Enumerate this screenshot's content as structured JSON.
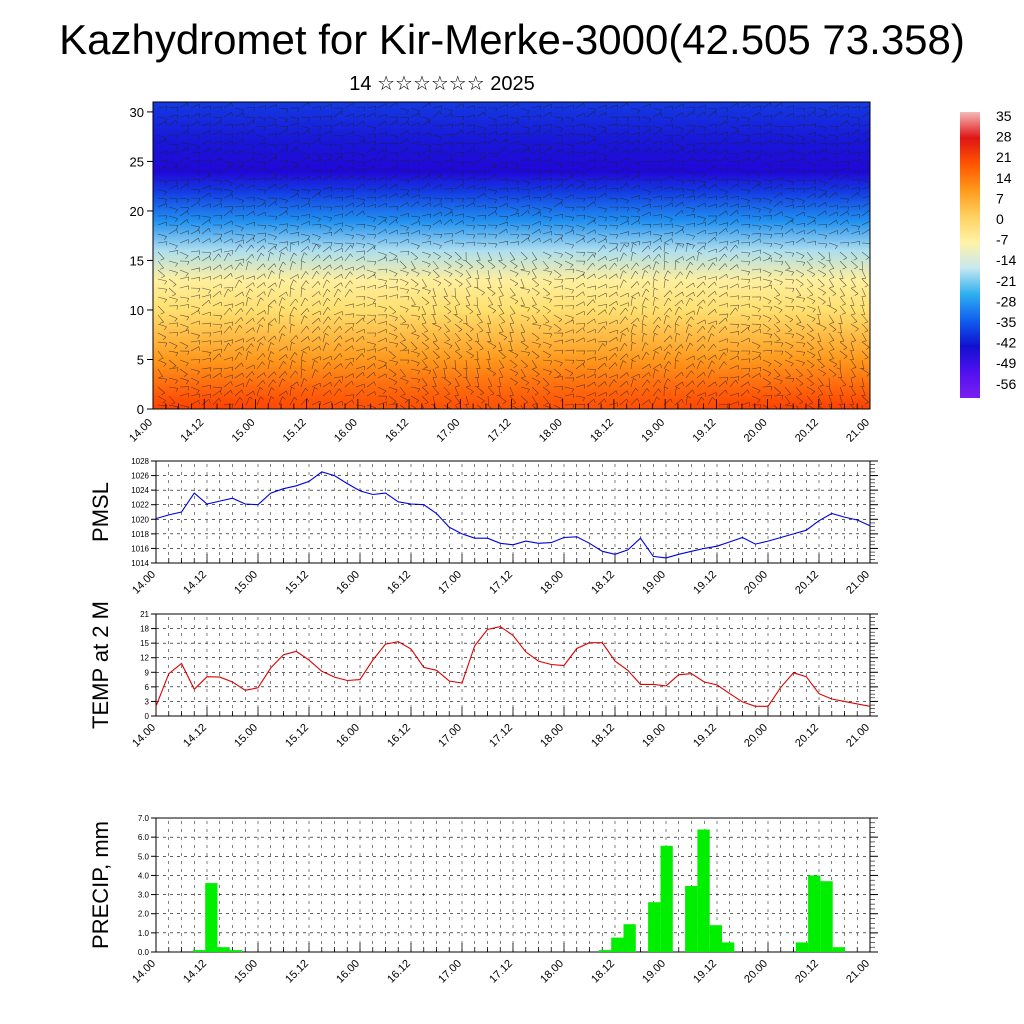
{
  "title": "Kazhydromet for Kir-Merke-3000(42.505 73.358)",
  "subtitle": "14 ☆☆☆☆☆☆ 2025",
  "time_labels": [
    "14.00",
    "14.12",
    "15.00",
    "15.12",
    "16.00",
    "16.12",
    "17.00",
    "17.12",
    "18.00",
    "18.12",
    "19.00",
    "19.12",
    "20.00",
    "20.12",
    "21.00"
  ],
  "chart_data": [
    {
      "type": "heatmap",
      "description_id": "cross-section",
      "y_ticks": [
        0,
        5,
        10,
        15,
        20,
        25,
        30
      ],
      "ylim": [
        0,
        31
      ],
      "colorbar": {
        "labels": [
          "35",
          "28",
          "21",
          "14",
          "7",
          "0",
          "-7",
          "-14",
          "-21",
          "-28",
          "-35",
          "-42",
          "-49",
          "-56"
        ],
        "colors": [
          "#f5b8b8",
          "#e01515",
          "#ff5500",
          "#ff9a1a",
          "#ffd060",
          "#fff3a8",
          "#c8e8f0",
          "#30b0f0",
          "#1060f0",
          "#1010d0",
          "#5010f0",
          "#7a20f0"
        ]
      },
      "temperature_profile_by_height": [
        [
          0,
          17
        ],
        [
          5,
          8
        ],
        [
          10,
          0
        ],
        [
          13,
          -5
        ],
        [
          16,
          -14
        ],
        [
          19,
          -28
        ],
        [
          22,
          -42
        ],
        [
          24,
          -56
        ],
        [
          27,
          -49
        ],
        [
          31,
          -42
        ]
      ]
    },
    {
      "type": "line",
      "ylabel": "PMSL",
      "color": "#0000dd",
      "ylim": [
        1014,
        1028
      ],
      "y_ticks": [
        1014,
        1016,
        1018,
        1020,
        1022,
        1024,
        1026,
        1028
      ],
      "values": [
        1020.1,
        1020.6,
        1021.0,
        1023.6,
        1022.1,
        1022.5,
        1022.9,
        1022.1,
        1022.0,
        1023.6,
        1024.2,
        1024.6,
        1025.2,
        1026.5,
        1026.0,
        1024.9,
        1023.9,
        1023.4,
        1023.6,
        1022.4,
        1022.1,
        1022.0,
        1020.8,
        1018.9,
        1018.0,
        1017.4,
        1017.4,
        1016.7,
        1016.5,
        1017.0,
        1016.7,
        1016.8,
        1017.5,
        1017.6,
        1016.7,
        1015.6,
        1015.2,
        1015.8,
        1017.4,
        1014.9,
        1014.7,
        1015.2,
        1015.6,
        1016.0,
        1016.3,
        1016.9,
        1017.5,
        1016.6,
        1017.0,
        1017.5,
        1018.0,
        1018.5,
        1019.8,
        1020.8,
        1020.3,
        1019.9,
        1019.1
      ]
    },
    {
      "type": "line",
      "ylabel": "TEMP at 2 M",
      "color": "#dd0000",
      "ylim": [
        0,
        21
      ],
      "y_ticks": [
        0,
        3,
        6,
        9,
        12,
        15,
        18,
        21
      ],
      "values": [
        2.0,
        8.7,
        10.8,
        5.5,
        8.1,
        8.0,
        7.0,
        5.3,
        5.8,
        9.9,
        12.6,
        13.3,
        11.5,
        9.2,
        8.0,
        7.3,
        7.5,
        11.5,
        14.8,
        15.3,
        13.8,
        10.0,
        9.4,
        7.2,
        6.8,
        14.5,
        17.8,
        18.4,
        16.6,
        13.2,
        11.3,
        10.6,
        10.4,
        13.9,
        15.1,
        15.1,
        11.3,
        9.4,
        6.5,
        6.5,
        6.2,
        8.5,
        8.7,
        7.0,
        6.4,
        4.6,
        2.9,
        2.0,
        2.0,
        5.9,
        8.9,
        8.1,
        4.6,
        3.5,
        3.0,
        2.5,
        2.0
      ]
    },
    {
      "type": "bar",
      "ylabel": "PRECIP, mm",
      "color": "#00ee00",
      "ylim": [
        0,
        7
      ],
      "y_ticks": [
        "0.0",
        "1.0",
        "2.0",
        "3.0",
        "4.0",
        "5.0",
        "6.0",
        "7.0"
      ],
      "values": [
        0,
        0,
        0.1,
        3.6,
        0.25,
        0.1,
        0,
        0,
        0,
        0,
        0,
        0,
        0,
        0,
        0,
        0,
        0,
        0,
        0,
        0,
        0,
        0,
        0,
        0,
        0,
        0,
        0,
        0,
        0,
        0,
        0,
        0,
        0,
        0,
        0,
        0.1,
        0.75,
        1.45,
        0,
        2.6,
        5.55,
        0,
        3.45,
        6.4,
        1.4,
        0.5,
        0,
        0,
        0,
        0,
        0,
        0.5,
        4.0,
        3.7,
        0.25,
        0
      ]
    }
  ]
}
